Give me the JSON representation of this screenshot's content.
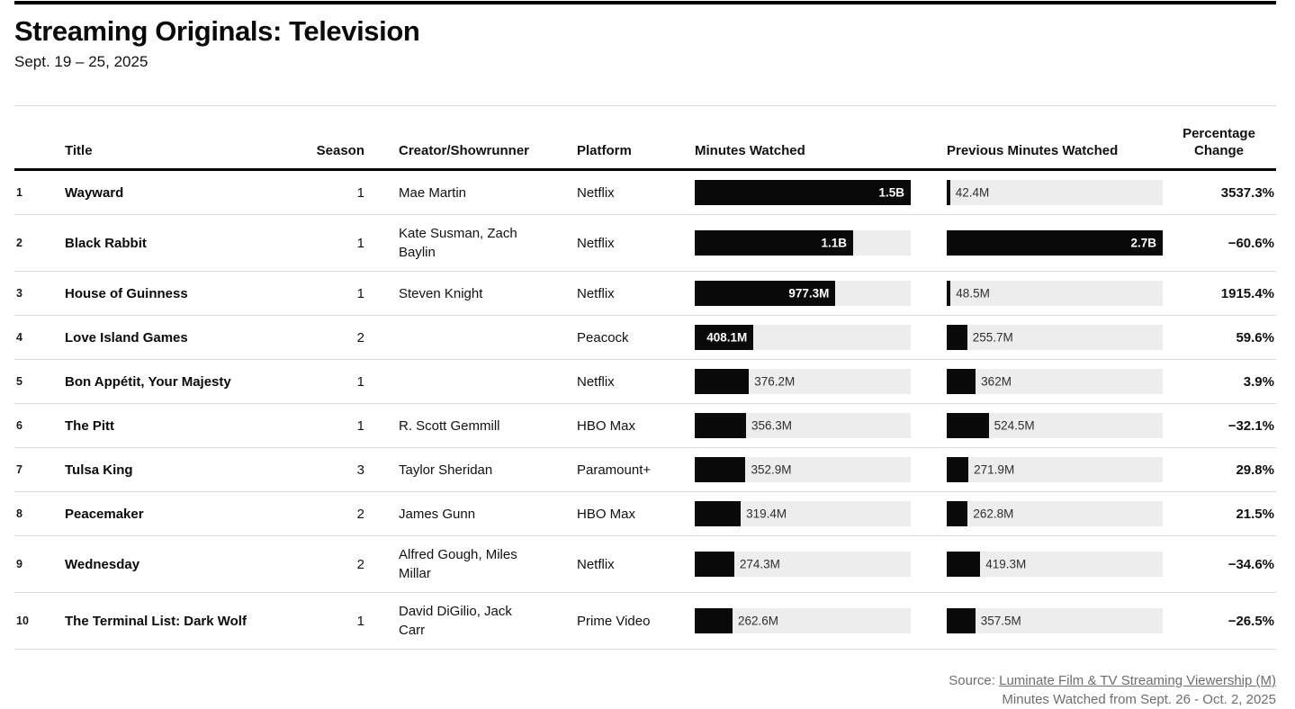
{
  "header": {
    "title": "Streaming Originals: Television",
    "subtitle": "Sept. 19 – 25, 2025"
  },
  "colors": {
    "bar_fill": "#0a0a0a",
    "bar_track": "#ededed",
    "rule_dark": "#000000",
    "rule_light": "#dcdcdc",
    "footer_text": "#6e6e6e"
  },
  "chart_data": {
    "type": "table",
    "title": "Streaming Originals: Television",
    "subtitle": "Sept. 19 – 25, 2025",
    "columns": {
      "title": "Title",
      "season": "Season",
      "creator": "Creator/Showrunner",
      "platform": "Platform",
      "minutes": "Minutes Watched",
      "previous": "Previous Minutes Watched",
      "change": "Percentage Change"
    },
    "bar_scale": {
      "minutes_max_millions": 1500,
      "previous_max_millions": 2700
    },
    "rows": [
      {
        "rank": "1",
        "title": "Wayward",
        "season": "1",
        "creator": "Mae Martin",
        "platform": "Netflix",
        "minutes_label": "1.5B",
        "minutes_millions": 1500,
        "minutes_label_inside": true,
        "previous_label": "42.4M",
        "previous_millions": 42.4,
        "previous_label_inside": false,
        "change": "3537.3%"
      },
      {
        "rank": "2",
        "title": "Black Rabbit",
        "season": "1",
        "creator": "Kate Susman, Zach Baylin",
        "platform": "Netflix",
        "minutes_label": "1.1B",
        "minutes_millions": 1100,
        "minutes_label_inside": true,
        "previous_label": "2.7B",
        "previous_millions": 2700,
        "previous_label_inside": true,
        "change": "−60.6%"
      },
      {
        "rank": "3",
        "title": "House of Guinness",
        "season": "1",
        "creator": "Steven Knight",
        "platform": "Netflix",
        "minutes_label": "977.3M",
        "minutes_millions": 977.3,
        "minutes_label_inside": true,
        "previous_label": "48.5M",
        "previous_millions": 48.5,
        "previous_label_inside": false,
        "change": "1915.4%"
      },
      {
        "rank": "4",
        "title": "Love Island Games",
        "season": "2",
        "creator": "",
        "platform": "Peacock",
        "minutes_label": "408.1M",
        "minutes_millions": 408.1,
        "minutes_label_inside": true,
        "previous_label": "255.7M",
        "previous_millions": 255.7,
        "previous_label_inside": false,
        "change": "59.6%"
      },
      {
        "rank": "5",
        "title": "Bon Appétit, Your Majesty",
        "season": "1",
        "creator": "",
        "platform": "Netflix",
        "minutes_label": "376.2M",
        "minutes_millions": 376.2,
        "minutes_label_inside": false,
        "previous_label": "362M",
        "previous_millions": 362,
        "previous_label_inside": false,
        "change": "3.9%"
      },
      {
        "rank": "6",
        "title": "The Pitt",
        "season": "1",
        "creator": "R. Scott Gemmill",
        "platform": "HBO Max",
        "minutes_label": "356.3M",
        "minutes_millions": 356.3,
        "minutes_label_inside": false,
        "previous_label": "524.5M",
        "previous_millions": 524.5,
        "previous_label_inside": false,
        "change": "−32.1%"
      },
      {
        "rank": "7",
        "title": "Tulsa King",
        "season": "3",
        "creator": "Taylor Sheridan",
        "platform": "Paramount+",
        "minutes_label": "352.9M",
        "minutes_millions": 352.9,
        "minutes_label_inside": false,
        "previous_label": "271.9M",
        "previous_millions": 271.9,
        "previous_label_inside": false,
        "change": "29.8%"
      },
      {
        "rank": "8",
        "title": "Peacemaker",
        "season": "2",
        "creator": "James Gunn",
        "platform": "HBO Max",
        "minutes_label": "319.4M",
        "minutes_millions": 319.4,
        "minutes_label_inside": false,
        "previous_label": "262.8M",
        "previous_millions": 262.8,
        "previous_label_inside": false,
        "change": "21.5%"
      },
      {
        "rank": "9",
        "title": "Wednesday",
        "season": "2",
        "creator": "Alfred Gough, Miles Millar",
        "platform": "Netflix",
        "minutes_label": "274.3M",
        "minutes_millions": 274.3,
        "minutes_label_inside": false,
        "previous_label": "419.3M",
        "previous_millions": 419.3,
        "previous_label_inside": false,
        "change": "−34.6%"
      },
      {
        "rank": "10",
        "title": "The Terminal List: Dark Wolf",
        "season": "1",
        "creator": "David DiGilio, Jack Carr",
        "platform": "Prime Video",
        "minutes_label": "262.6M",
        "minutes_millions": 262.6,
        "minutes_label_inside": false,
        "previous_label": "357.5M",
        "previous_millions": 357.5,
        "previous_label_inside": false,
        "change": "−26.5%"
      }
    ]
  },
  "footer": {
    "source_prefix": "Source: ",
    "source_link": "Luminate Film & TV Streaming Viewership (M)",
    "note": "Minutes Watched from Sept. 26 - Oct. 2, 2025"
  }
}
